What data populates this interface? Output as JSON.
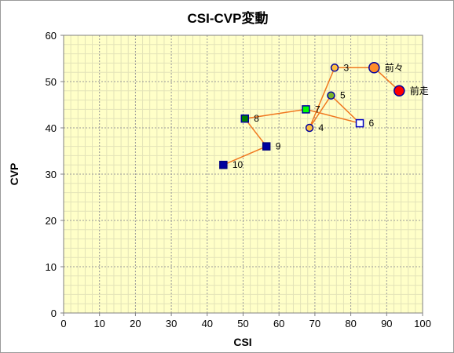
{
  "chart_data": {
    "type": "scatter",
    "title": "CSI-CVP変動",
    "xlabel": "CSI",
    "ylabel": "CVP",
    "xlim": [
      0,
      100
    ],
    "ylim": [
      0,
      60
    ],
    "x_ticks": [
      0,
      10,
      20,
      30,
      40,
      50,
      60,
      70,
      80,
      90,
      100
    ],
    "y_ticks": [
      0,
      10,
      20,
      30,
      40,
      50,
      60
    ],
    "grid": true,
    "connected": true,
    "line_color": "#f07820",
    "plot_background": "#ffffc8",
    "points": [
      {
        "label": "前走",
        "x": 93.5,
        "y": 48,
        "marker": "circle",
        "size": "large",
        "fill": "#ff0000",
        "stroke": "#0000a0"
      },
      {
        "label": "前々",
        "x": 86.5,
        "y": 53,
        "marker": "circle",
        "size": "large",
        "fill": "#ff8c28",
        "stroke": "#0000a0"
      },
      {
        "label": "3",
        "x": 75.5,
        "y": 53,
        "marker": "circle",
        "size": "medium",
        "fill": "#ffc040",
        "stroke": "#0000a0"
      },
      {
        "label": "4",
        "x": 68.5,
        "y": 40,
        "marker": "circle",
        "size": "medium",
        "fill": "#ffc040",
        "stroke": "#0000a0"
      },
      {
        "label": "5",
        "x": 74.5,
        "y": 47,
        "marker": "circle",
        "size": "medium",
        "fill": "#78b428",
        "stroke": "#0000a0"
      },
      {
        "label": "6",
        "x": 82.5,
        "y": 41,
        "marker": "square",
        "size": "medium",
        "fill": "#ffffff",
        "stroke": "#0000c0"
      },
      {
        "label": "7",
        "x": 67.5,
        "y": 44,
        "marker": "square",
        "size": "medium",
        "fill": "#00ff00",
        "stroke": "#0000a0"
      },
      {
        "label": "8",
        "x": 50.5,
        "y": 42,
        "marker": "square",
        "size": "medium",
        "fill": "#008000",
        "stroke": "#0000a0"
      },
      {
        "label": "9",
        "x": 56.5,
        "y": 36,
        "marker": "square",
        "size": "medium",
        "fill": "#0000a0",
        "stroke": "#000080"
      },
      {
        "label": "10",
        "x": 44.5,
        "y": 32,
        "marker": "square",
        "size": "medium",
        "fill": "#0000a0",
        "stroke": "#000080"
      }
    ]
  }
}
